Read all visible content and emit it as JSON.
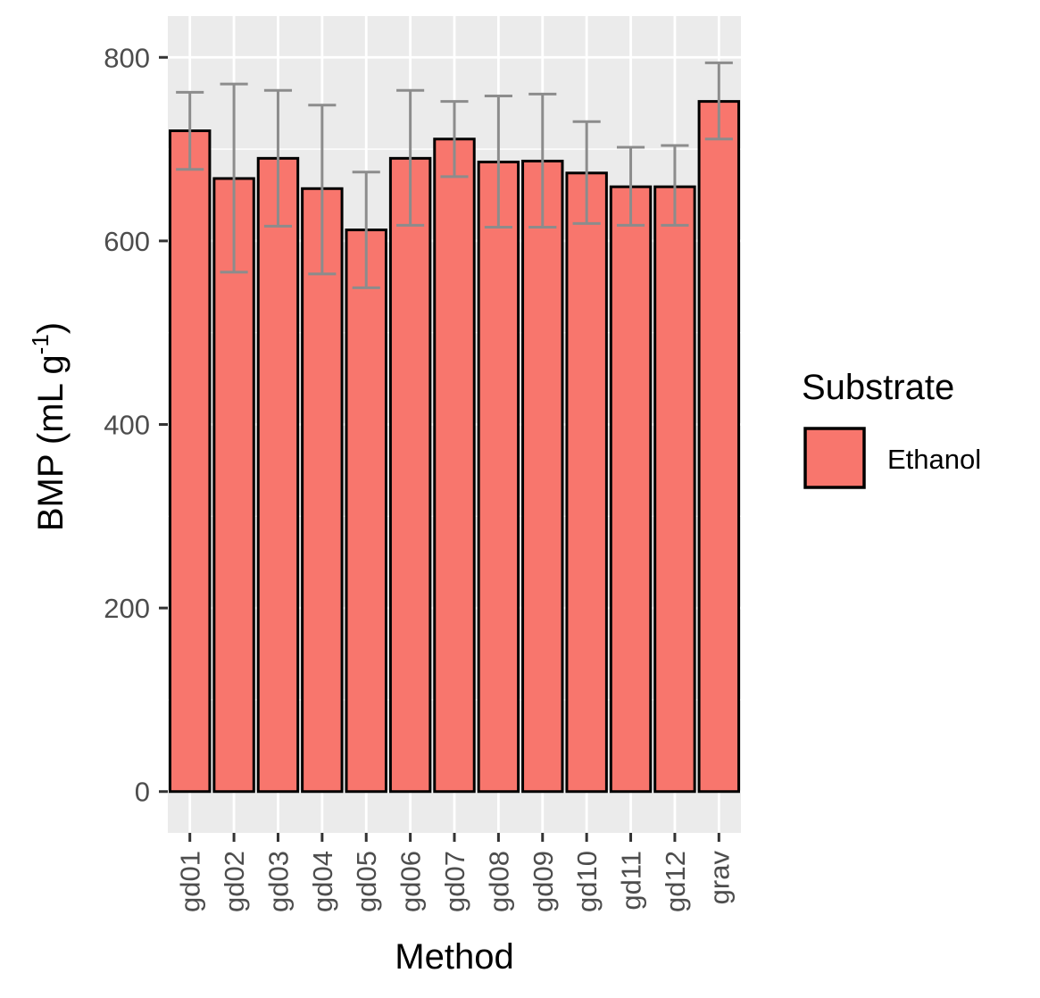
{
  "chart_data": {
    "type": "bar",
    "title": "",
    "xlabel": "Method",
    "ylabel": "BMP (mL g-1)",
    "ylabel_parts": {
      "main": "BMP (mL g",
      "sup": "-1",
      "close": ")"
    },
    "ylim": [
      -45,
      845
    ],
    "yticks": [
      0,
      200,
      400,
      600,
      800
    ],
    "ytick_labels": [
      "0",
      "200",
      "400",
      "600",
      "800"
    ],
    "grid": true,
    "legend": {
      "title": "Substrate",
      "placement": "right",
      "entries": [
        "Ethanol"
      ]
    },
    "categories": [
      "gd01",
      "gd02",
      "gd03",
      "gd04",
      "gd05",
      "gd06",
      "gd07",
      "gd08",
      "gd09",
      "gd10",
      "gd11",
      "gd12",
      "grav"
    ],
    "series": [
      {
        "name": "Ethanol",
        "color": "#f8766d",
        "values": [
          720,
          668,
          690,
          657,
          612,
          690,
          711,
          686,
          687,
          674,
          659,
          659,
          752
        ],
        "error_low": [
          678,
          566,
          616,
          564,
          549,
          617,
          670,
          615,
          615,
          619,
          617,
          617,
          711
        ],
        "error_high": [
          762,
          771,
          764,
          748,
          675,
          764,
          752,
          758,
          760,
          730,
          702,
          704,
          794
        ]
      }
    ],
    "colors": {
      "panel": "#ebebeb",
      "grid": "#ffffff",
      "bar_outline": "#000000",
      "errorbar": "#8c8c8c",
      "tick": "#333333"
    }
  }
}
